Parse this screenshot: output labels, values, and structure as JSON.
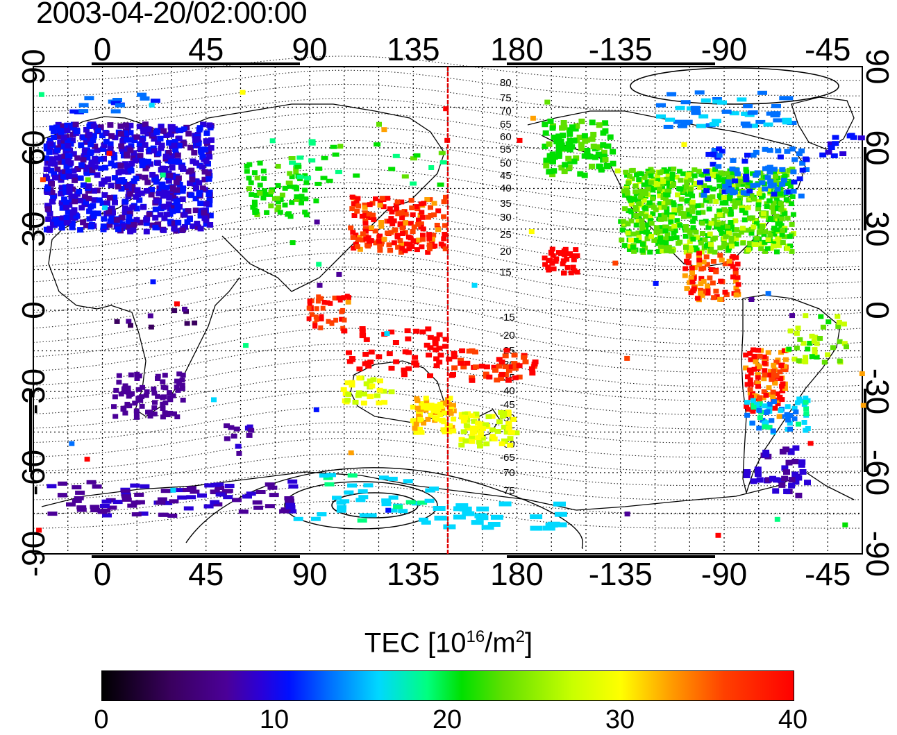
{
  "title": "2003-04-20/02:00:00",
  "lon_ticks": [
    "0",
    "45",
    "90",
    "135",
    "180",
    "-135",
    "-90",
    "-45"
  ],
  "lat_ticks": [
    "90",
    "60",
    "30",
    "0",
    "-30",
    "-60",
    "-90"
  ],
  "contour_labels": {
    "north": [
      "80",
      "75",
      "70",
      "65",
      "60",
      "55",
      "50",
      "45",
      "40",
      "35",
      "30",
      "25",
      "20",
      "15"
    ],
    "south": [
      "-15",
      "-20",
      "-25",
      "-30",
      "-35",
      "-40",
      "-45",
      "-50",
      "-55",
      "-60",
      "-65",
      "-70",
      "-75"
    ]
  },
  "colorbar": {
    "label_main": "TEC  [10",
    "label_exp1": "16",
    "label_mid": "/m",
    "label_exp2": "2",
    "label_end": "]",
    "ticks": [
      "0",
      "10",
      "20",
      "30",
      "40"
    ]
  },
  "map_elements": {
    "terminator_longitude": 150,
    "terminator_color": "#e00000",
    "grid_spacing_deg": 15
  }
}
